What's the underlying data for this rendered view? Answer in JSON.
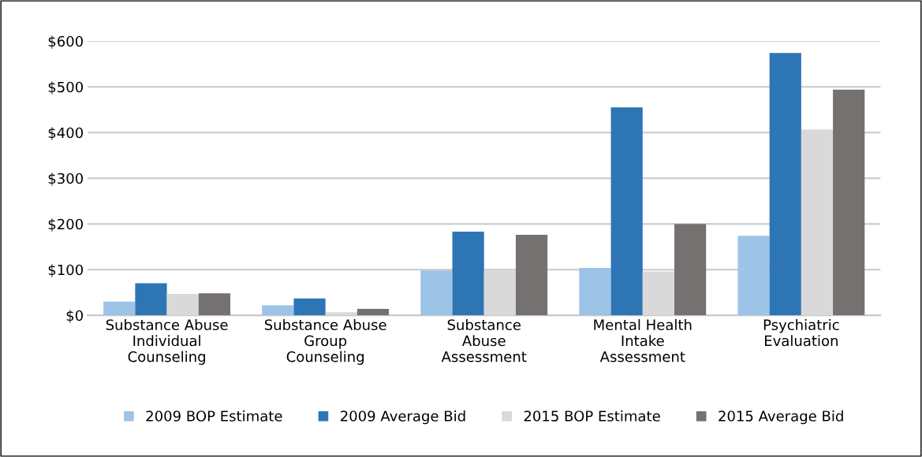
{
  "chart_data": {
    "type": "bar",
    "categories": [
      "Substance Abuse\nIndividual\nCounseling",
      "Substance Abuse\nGroup\nCounseling",
      "Substance\nAbuse\nAssessment",
      "Mental Health\nIntake\nAssessment",
      "Psychiatric\nEvaluation"
    ],
    "series": [
      {
        "name": "2009 BOP Estimate",
        "color": "#9dc3e6",
        "values": [
          30,
          22,
          98,
          104,
          174
        ]
      },
      {
        "name": "2009 Average Bid",
        "color": "#2e75b6",
        "values": [
          70,
          37,
          183,
          455,
          574
        ]
      },
      {
        "name": "2015 BOP Estimate",
        "color": "#d9d9d9",
        "values": [
          47,
          7,
          98,
          96,
          407
        ]
      },
      {
        "name": "2015 Average Bid",
        "color": "#767171",
        "values": [
          48,
          14,
          176,
          200,
          494
        ]
      }
    ],
    "ylim": [
      0,
      600
    ],
    "yticks": [
      {
        "value": 0,
        "label": "$0"
      },
      {
        "value": 100,
        "label": "$100"
      },
      {
        "value": 200,
        "label": "$200"
      },
      {
        "value": 300,
        "label": "$300"
      },
      {
        "value": 400,
        "label": "$400"
      },
      {
        "value": 500,
        "label": "$500"
      },
      {
        "value": 600,
        "label": "$600"
      }
    ],
    "grid": "y",
    "legend": "bottom"
  }
}
